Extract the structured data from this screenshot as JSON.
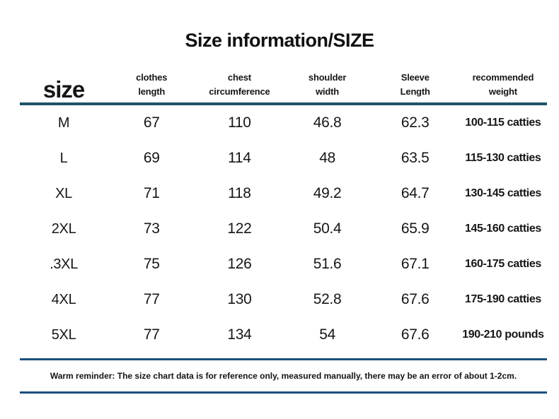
{
  "title": "Size information/SIZE",
  "header": {
    "size_label": "size",
    "cols": [
      {
        "l1": "clothes",
        "l2": "length"
      },
      {
        "l1": "chest",
        "l2": "circumference"
      },
      {
        "l1": "shoulder",
        "l2": "width"
      },
      {
        "l1": "Sleeve",
        "l2": "Length"
      },
      {
        "l1": "recommended",
        "l2": "weight"
      }
    ]
  },
  "chart_data": {
    "type": "table",
    "title": "Size information/SIZE",
    "columns": [
      "size",
      "clothes length",
      "chest circumference",
      "shoulder width",
      "Sleeve Length",
      "recommended weight"
    ],
    "rows": [
      [
        "M",
        67,
        110,
        46.8,
        62.3,
        "100-115 catties"
      ],
      [
        "L",
        69,
        114,
        48,
        63.5,
        "115-130 catties"
      ],
      [
        "XL",
        71,
        118,
        49.2,
        64.7,
        "130-145 catties"
      ],
      [
        "2XL",
        73,
        122,
        50.4,
        65.9,
        "145-160 catties"
      ],
      [
        ".3XL",
        75,
        126,
        51.6,
        67.1,
        "160-175 catties"
      ],
      [
        "4XL",
        77,
        130,
        52.8,
        67.6,
        "175-190 catties"
      ],
      [
        "5XL",
        77,
        134,
        54,
        67.6,
        "190-210 pounds"
      ]
    ],
    "footnote": "Warm reminder: The size chart data is for reference only, measured manually, there may be an error of about 1-2cm."
  },
  "footer": {
    "reminder": "Warm reminder: The size chart data is for reference only, measured manually, there may be an error of about 1-2cm."
  },
  "colors": {
    "header_rule": "#1e5368",
    "footer_rule": "#1b4f7d",
    "text": "#161616"
  }
}
